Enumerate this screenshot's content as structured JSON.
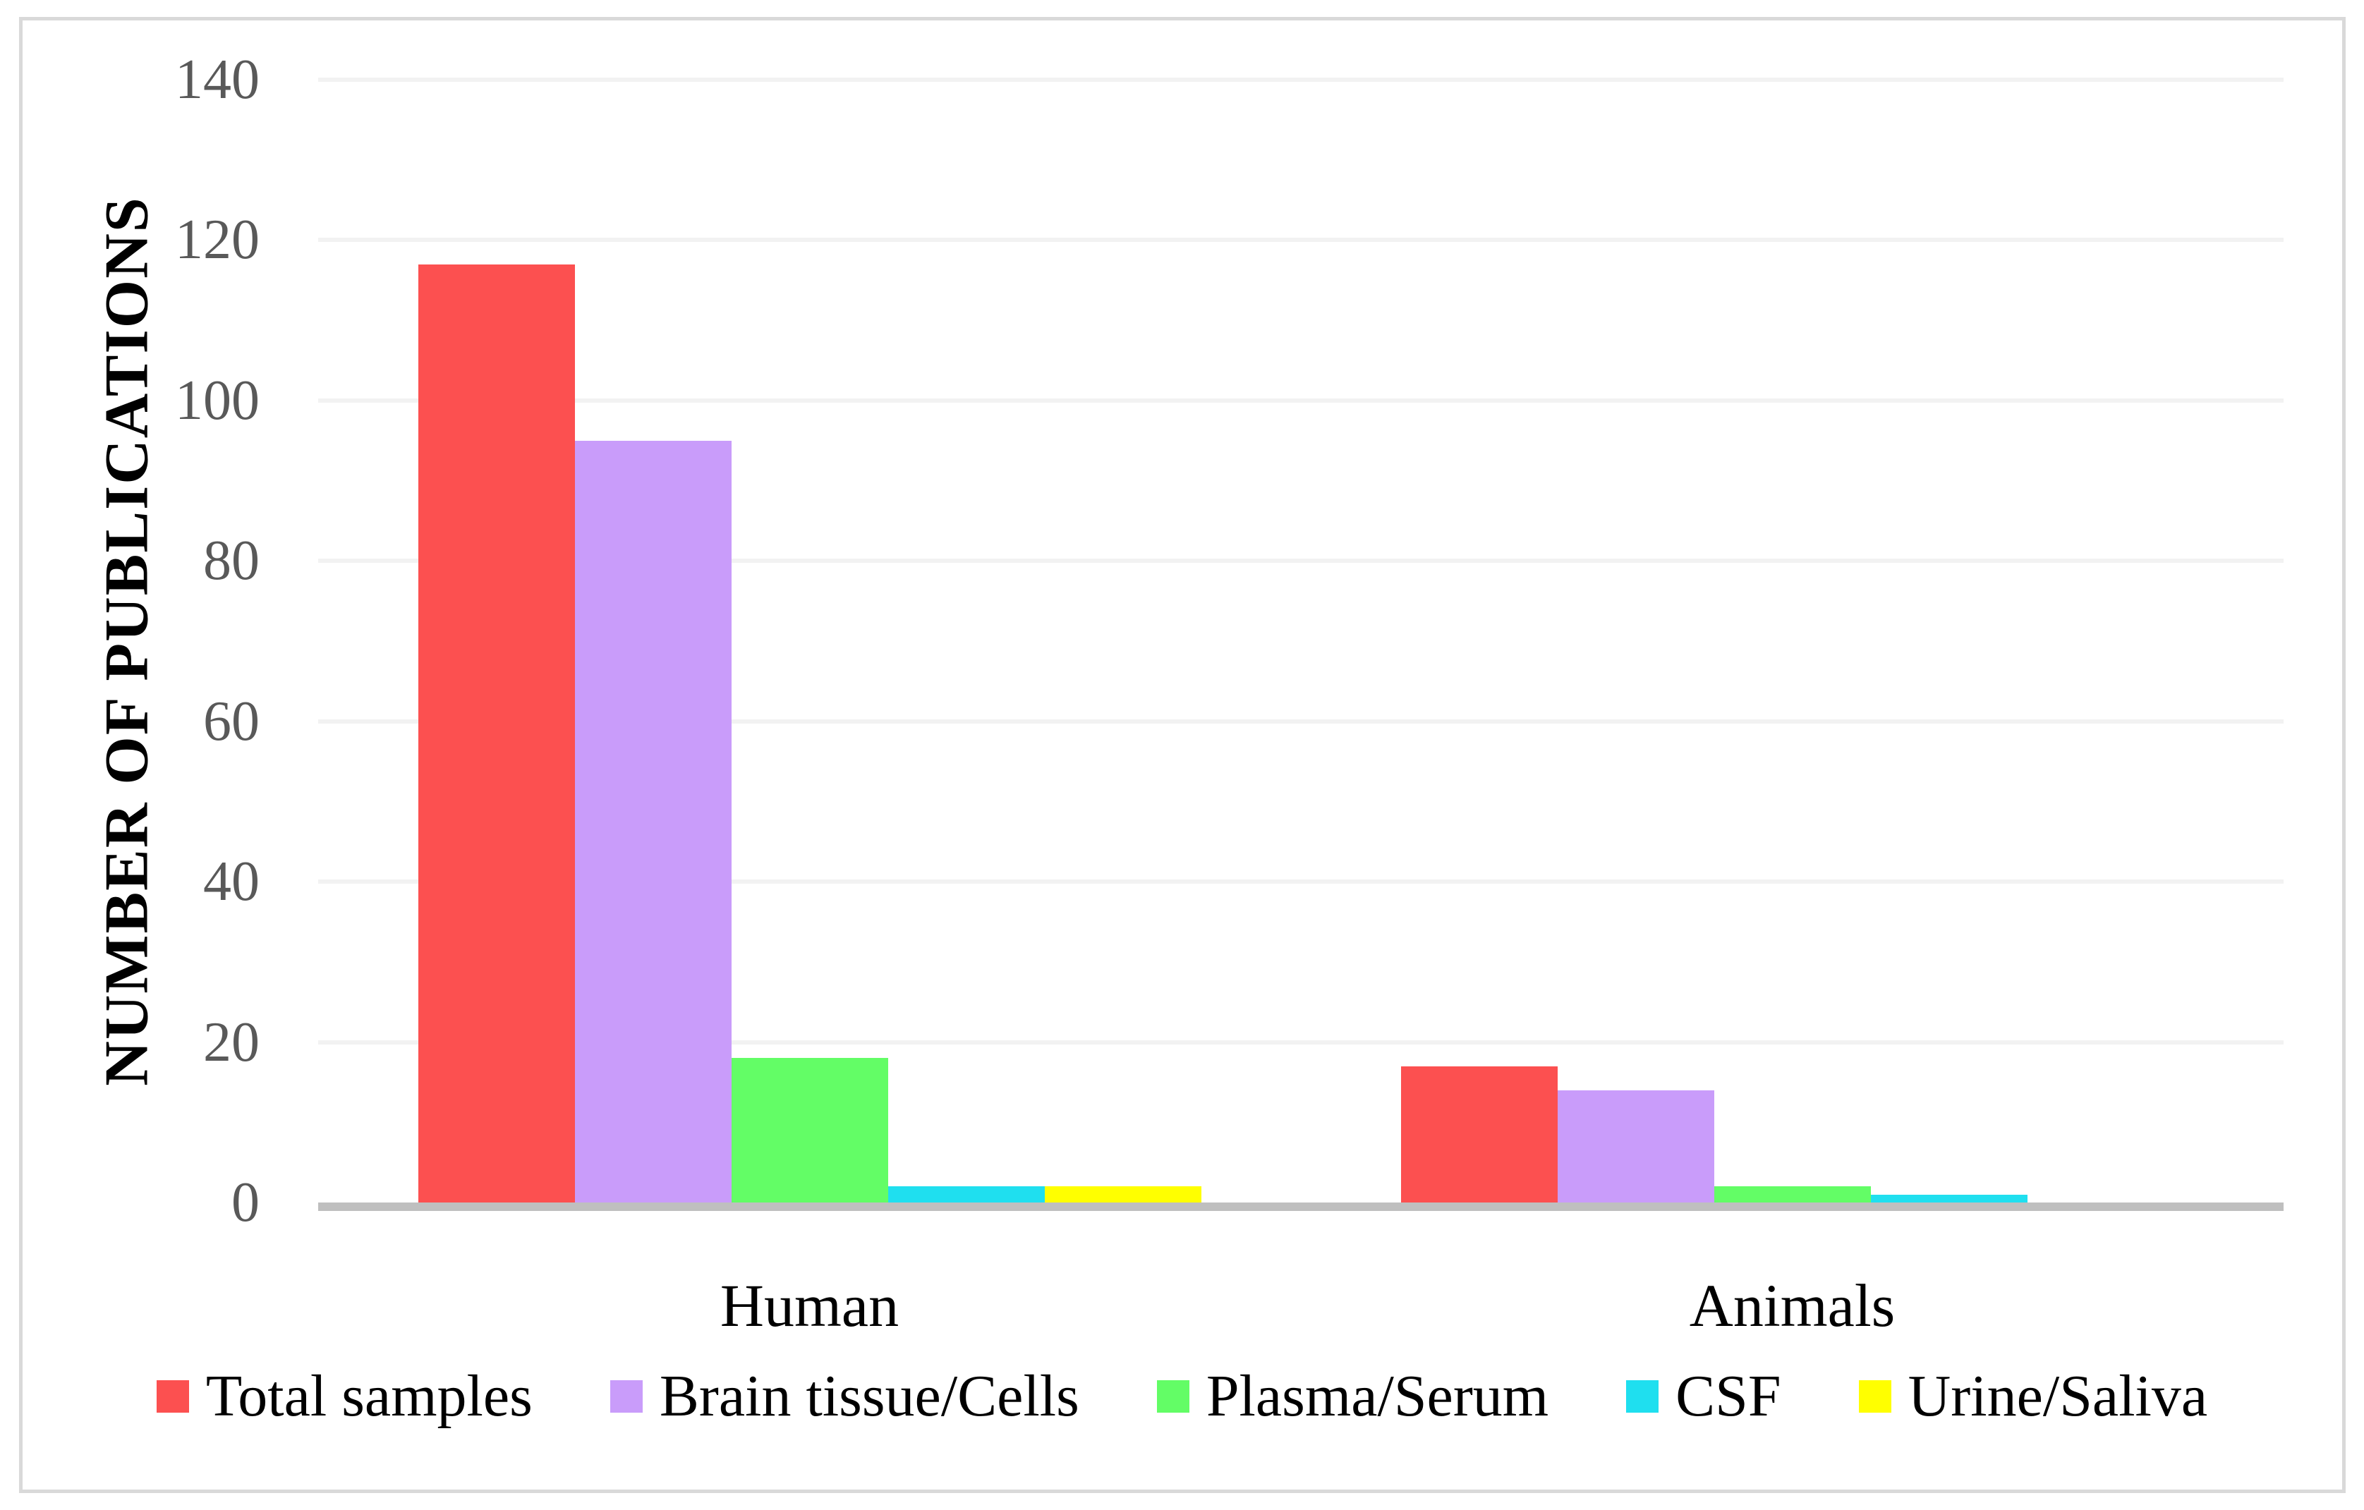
{
  "figure": {
    "ylabel": "NUMBER OF PUBLICATIONS"
  },
  "chart_data": {
    "type": "bar",
    "title": "",
    "xlabel": "",
    "ylabel": "NUMBER OF PUBLICATIONS",
    "categories": [
      "Human",
      "Animals"
    ],
    "series": [
      {
        "name": "Total samples",
        "color": "#FC5050",
        "values": [
          117,
          17
        ]
      },
      {
        "name": "Brain tissue/Cells",
        "color": "#C99CFA",
        "values": [
          95,
          14
        ]
      },
      {
        "name": "Plasma/Serum",
        "color": "#63FD66",
        "values": [
          18,
          2
        ]
      },
      {
        "name": "CSF",
        "color": "#1FDFEF",
        "values": [
          2,
          1
        ]
      },
      {
        "name": "Urine/Saliva",
        "color": "#FFFF00",
        "values": [
          2,
          0
        ]
      }
    ],
    "ylim": [
      0,
      140
    ],
    "ytick_step": 20,
    "yticks": [
      0,
      20,
      40,
      60,
      80,
      100,
      120,
      140
    ],
    "grid": true,
    "legend_position": "bottom",
    "colors": {
      "axis_line": "#BFBFBF",
      "gridline": "#F2F2F2",
      "tick_text": "#595959",
      "frame_border": "#D9D9D9",
      "label_text": "#000000"
    }
  }
}
